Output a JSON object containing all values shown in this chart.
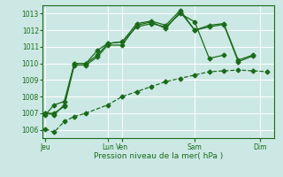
{
  "xlabel": "Pression niveau de la mer( hPa )",
  "bg_color": "#cce8e4",
  "grid_color": "#ffffff",
  "line_color": "#1a6b1a",
  "vline_color": "#cc8888",
  "ylim": [
    1005.5,
    1013.5
  ],
  "xlim": [
    0,
    16
  ],
  "yticks": [
    1006,
    1007,
    1008,
    1009,
    1010,
    1011,
    1012,
    1013
  ],
  "x_tick_positions": [
    0.2,
    4.5,
    5.5,
    10.5,
    15.0
  ],
  "x_tick_labels": [
    "Jeu",
    "Lun",
    "Ven",
    "Sam",
    "Dim"
  ],
  "vline_positions": [
    0.2,
    4.5,
    5.5,
    10.5,
    15.0
  ],
  "line1_x": [
    0.2,
    0.8,
    1.5,
    2.2,
    3.0,
    4.5,
    5.5,
    6.5,
    7.5,
    8.5,
    9.5,
    10.5,
    11.5,
    12.5,
    13.5,
    14.5,
    15.5
  ],
  "line1_y": [
    1006.05,
    1005.85,
    1006.5,
    1006.8,
    1007.0,
    1007.5,
    1008.0,
    1008.3,
    1008.6,
    1008.9,
    1009.1,
    1009.3,
    1009.5,
    1009.55,
    1009.6,
    1009.55,
    1009.5
  ],
  "line2_x": [
    0.2,
    0.8,
    1.5,
    2.2,
    3.0,
    3.8,
    4.5,
    5.5,
    6.5,
    7.5,
    8.5,
    9.5,
    10.5,
    11.5,
    12.5
  ],
  "line2_y": [
    1006.9,
    1007.5,
    1007.7,
    1010.0,
    1010.0,
    1010.8,
    1011.2,
    1011.3,
    1012.2,
    1012.4,
    1012.2,
    1013.0,
    1012.5,
    1010.3,
    1010.5
  ],
  "line3_x": [
    0.2,
    0.8,
    1.5,
    2.2,
    3.0,
    3.8,
    4.5,
    5.5,
    6.5,
    7.5,
    8.5,
    9.5,
    10.5,
    11.5,
    12.5,
    13.5,
    14.5
  ],
  "line3_y": [
    1007.0,
    1006.9,
    1007.5,
    1010.0,
    1010.0,
    1010.5,
    1011.2,
    1011.3,
    1012.4,
    1012.55,
    1012.3,
    1013.2,
    1012.0,
    1012.3,
    1012.4,
    1010.2,
    1010.5
  ],
  "line4_x": [
    0.2,
    0.8,
    1.5,
    2.2,
    3.0,
    3.8,
    4.5,
    5.5,
    6.5,
    7.5,
    8.5,
    9.5,
    10.5,
    11.5,
    12.5,
    13.5,
    14.5
  ],
  "line4_y": [
    1007.0,
    1007.0,
    1007.4,
    1009.9,
    1009.9,
    1010.4,
    1011.1,
    1011.1,
    1012.3,
    1012.5,
    1012.1,
    1013.1,
    1012.0,
    1012.2,
    1012.35,
    1010.1,
    1010.45
  ]
}
